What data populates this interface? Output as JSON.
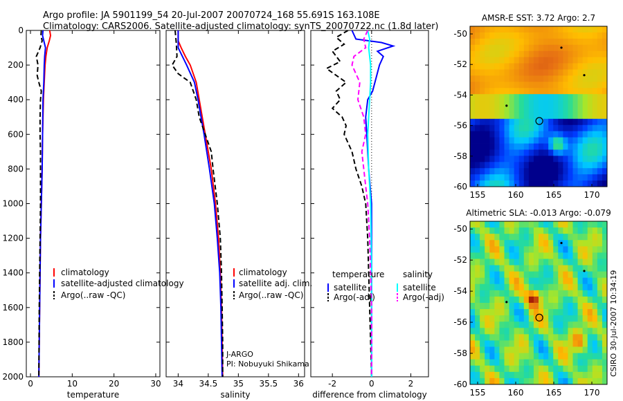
{
  "title_line1": "Argo profile: JA 5901199_54 20-Jul-2007 20070724_168 55.691S 163.108E",
  "title_line2": "Climatology: CARS2006. Satellite-adjusted climatology: synTS_20070722.nc (1.8d later)",
  "side_label": "CSIRO 30-Jul-2007 10:34:19",
  "colors": {
    "climatology": "#ff0000",
    "satellite": "#0000ff",
    "argo": "#000000",
    "satellite_salinity": "#00ffff",
    "argo_salinity": "#ff00ff"
  },
  "chart_data": [
    {
      "id": "temperature",
      "type": "line",
      "xlabel": "temperature",
      "xlim": [
        -1,
        31
      ],
      "ylim": [
        2000,
        0
      ],
      "xticks": [
        0,
        10,
        20,
        30
      ],
      "yticks": [
        0,
        200,
        400,
        600,
        800,
        1000,
        1200,
        1400,
        1600,
        1800,
        2000
      ],
      "legend": [
        "climatology",
        "satellite-adjusted climatology",
        "Argo(..raw -QC)"
      ],
      "series": [
        {
          "name": "climatology",
          "color": "#ff0000",
          "style": "solid",
          "depth": [
            0,
            30,
            60,
            100,
            150,
            200,
            300,
            400,
            600,
            800,
            1000,
            1200,
            1600,
            2000
          ],
          "values": [
            4.6,
            4.8,
            4.5,
            4.0,
            3.7,
            3.5,
            3.3,
            3.1,
            2.9,
            2.8,
            2.6,
            2.4,
            2.2,
            2.0
          ]
        },
        {
          "name": "satellite-adjusted climatology",
          "color": "#0000ff",
          "style": "solid",
          "depth": [
            0,
            30,
            60,
            100,
            150,
            200,
            300,
            400,
            600,
            800,
            1000,
            1200,
            1600,
            2000
          ],
          "values": [
            3.0,
            2.9,
            3.2,
            3.6,
            3.4,
            3.3,
            3.2,
            3.0,
            2.9,
            2.8,
            2.6,
            2.4,
            2.2,
            2.0
          ]
        },
        {
          "name": "Argo(..raw -QC)",
          "color": "#000000",
          "style": "dashed",
          "depth": [
            0,
            30,
            60,
            100,
            150,
            200,
            260,
            300,
            350,
            400,
            500,
            600,
            700,
            800,
            1000,
            1200,
            1600,
            2000
          ],
          "values": [
            2.6,
            2.5,
            2.8,
            2.3,
            1.4,
            1.8,
            1.6,
            2.0,
            2.6,
            2.4,
            2.3,
            2.3,
            2.4,
            2.4,
            2.4,
            2.3,
            2.1,
            2.0
          ]
        }
      ]
    },
    {
      "id": "salinity",
      "type": "line",
      "xlabel": "salinity",
      "xlim": [
        33.8,
        36.1
      ],
      "ylim": [
        2000,
        0
      ],
      "xticks": [
        34,
        34.5,
        35,
        35.5,
        36
      ],
      "legend": [
        "climatology",
        "satellite adj. clim.",
        "Argo(..raw -QC)"
      ],
      "annotations": [
        "J-ARGO",
        "PI: Nobuyuki Shikama"
      ],
      "series": [
        {
          "name": "climatology",
          "color": "#ff0000",
          "style": "solid",
          "depth": [
            0,
            60,
            100,
            150,
            200,
            300,
            400,
            600,
            800,
            1000,
            1200,
            1400,
            1600,
            1800,
            2000
          ],
          "values": [
            34.0,
            34.0,
            34.05,
            34.12,
            34.2,
            34.3,
            34.35,
            34.45,
            34.55,
            34.62,
            34.67,
            34.7,
            34.72,
            34.73,
            34.74
          ]
        },
        {
          "name": "satellite adj. clim.",
          "color": "#0000ff",
          "style": "solid",
          "depth": [
            0,
            60,
            100,
            150,
            200,
            300,
            400,
            600,
            800,
            1000,
            1200,
            1400,
            1600,
            1800,
            2000
          ],
          "values": [
            34.0,
            34.0,
            34.0,
            34.07,
            34.14,
            34.27,
            34.33,
            34.43,
            34.52,
            34.6,
            34.65,
            34.69,
            34.71,
            34.72,
            34.73
          ]
        },
        {
          "name": "Argo(..raw -QC)",
          "color": "#000000",
          "style": "dashed",
          "depth": [
            0,
            80,
            150,
            200,
            250,
            300,
            400,
            500,
            600,
            700,
            800,
            1000,
            1200,
            1400,
            1600,
            1800,
            2000
          ],
          "values": [
            33.95,
            33.97,
            33.98,
            33.9,
            34.0,
            34.2,
            34.3,
            34.35,
            34.45,
            34.55,
            34.58,
            34.65,
            34.7,
            34.72,
            34.73,
            34.74,
            34.74
          ]
        }
      ]
    },
    {
      "id": "difference",
      "type": "line",
      "xlabel": "difference from climatology",
      "xlim": [
        -3.1,
        2.9
      ],
      "ylim": [
        2000,
        0
      ],
      "xticks": [
        -2,
        0,
        2
      ],
      "legend_left_title": "temperature",
      "legend_right_title": "salinity",
      "legend": [
        "satellite",
        "Argo(-adj)",
        "satellite",
        "Argo(-adj)"
      ],
      "series": [
        {
          "name": "temperature satellite",
          "color": "#0000ff",
          "style": "solid",
          "depth": [
            0,
            50,
            70,
            90,
            120,
            150,
            200,
            350,
            400,
            500,
            600,
            800,
            1000,
            2000
          ],
          "values": [
            -1.0,
            -0.8,
            0.5,
            1.1,
            0.3,
            0.6,
            0.4,
            0.05,
            -0.2,
            -0.3,
            -0.25,
            -0.15,
            0.0,
            0.0
          ]
        },
        {
          "name": "temperature Argo(-adj)",
          "color": "#000000",
          "style": "dashed",
          "depth": [
            0,
            40,
            80,
            120,
            180,
            220,
            300,
            350,
            400,
            450,
            500,
            550,
            600,
            700,
            800,
            900,
            1000,
            1200,
            1600,
            2000
          ],
          "values": [
            -1.2,
            -1.8,
            -1.4,
            -2.0,
            -1.6,
            -2.3,
            -1.3,
            -1.8,
            -1.6,
            -2.0,
            -1.5,
            -1.3,
            -1.4,
            -1.0,
            -0.8,
            -0.5,
            -0.3,
            -0.2,
            -0.1,
            0.0
          ]
        },
        {
          "name": "salinity satellite",
          "color": "#00ffff",
          "style": "solid",
          "depth": [
            0,
            50,
            100,
            200,
            300,
            400,
            600,
            800,
            1000,
            1400,
            2000
          ],
          "values": [
            -0.2,
            -0.1,
            -0.15,
            -0.05,
            -0.05,
            -0.1,
            -0.2,
            -0.15,
            -0.05,
            0.0,
            0.0
          ]
        },
        {
          "name": "salinity Argo(-adj)",
          "color": "#ff00ff",
          "style": "dashed",
          "depth": [
            0,
            50,
            100,
            150,
            200,
            300,
            400,
            500,
            600,
            700,
            800,
            900,
            1000,
            1200,
            1600,
            2000
          ],
          "values": [
            -0.2,
            -0.4,
            -0.3,
            -0.9,
            -1.0,
            -0.6,
            -0.7,
            -0.4,
            -0.3,
            -0.5,
            -0.4,
            -0.3,
            -0.2,
            -0.1,
            0.0,
            0.0
          ]
        }
      ]
    },
    {
      "id": "sst_map",
      "type": "heatmap",
      "title": "AMSR-E SST: 3.72 Argo: 2.7",
      "xlim": [
        154,
        172
      ],
      "ylim": [
        -60,
        -49.5
      ],
      "xticks": [
        155,
        160,
        165,
        170
      ],
      "yticks": [
        -50,
        -52,
        -54,
        -56,
        -58,
        -60
      ],
      "marker": {
        "lon": 163.1,
        "lat": -55.7
      }
    },
    {
      "id": "sla_map",
      "type": "heatmap",
      "title": "Altimetric SLA: -0.013 Argo: -0.079",
      "xlim": [
        154,
        172
      ],
      "ylim": [
        -60,
        -49.5
      ],
      "xticks": [
        155,
        160,
        165,
        170
      ],
      "yticks": [
        -50,
        -52,
        -54,
        -56,
        -58,
        -60
      ],
      "marker": {
        "lon": 163.1,
        "lat": -55.7
      }
    }
  ]
}
